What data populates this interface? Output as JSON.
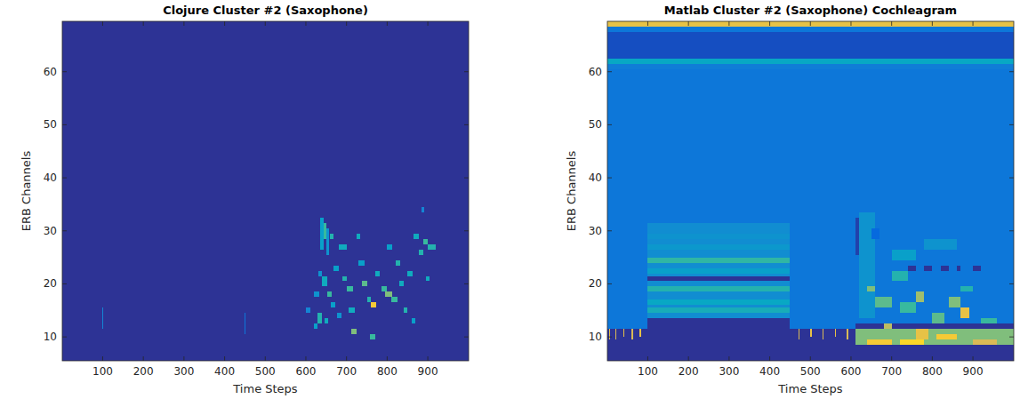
{
  "chart_data": [
    {
      "type": "heatmap",
      "title": "Clojure Cluster #2 (Saxophone)",
      "x_label": "Time Steps",
      "y_label": "ERB Channels",
      "xlim": [
        0.5,
        1000.5
      ],
      "ylim": [
        5.5,
        69.5
      ],
      "xticks": [
        100,
        200,
        300,
        400,
        500,
        600,
        700,
        800,
        900
      ],
      "yticks": [
        10,
        20,
        30,
        40,
        50,
        60
      ],
      "clim": [
        0,
        1
      ],
      "cells": [
        [
          0.5,
          1000.5,
          5.5,
          69.5,
          0.02
        ],
        [
          98,
          102,
          11.5,
          15.5,
          0.25
        ],
        [
          448,
          452,
          10.5,
          14.5,
          0.2
        ],
        [
          636,
          644,
          26.5,
          32.5,
          0.35
        ],
        [
          644,
          650,
          28.5,
          31.5,
          0.5
        ],
        [
          650,
          658,
          25.5,
          30.5,
          0.3
        ],
        [
          660,
          668,
          28.5,
          29.5,
          0.45
        ],
        [
          630,
          640,
          21.5,
          22.5,
          0.3
        ],
        [
          640,
          652,
          19.5,
          21.5,
          0.4
        ],
        [
          652,
          664,
          17.5,
          18.5,
          0.5
        ],
        [
          620,
          628,
          11.5,
          12.5,
          0.35
        ],
        [
          628,
          640,
          12.5,
          14.5,
          0.45
        ],
        [
          645,
          655,
          12.5,
          13.5,
          0.4
        ],
        [
          668,
          680,
          22.5,
          23.5,
          0.35
        ],
        [
          680,
          700,
          26.5,
          27.5,
          0.4
        ],
        [
          690,
          700,
          20.5,
          21.5,
          0.45
        ],
        [
          700,
          716,
          18.5,
          19.5,
          0.5
        ],
        [
          705,
          720,
          14.5,
          15.5,
          0.4
        ],
        [
          712,
          724,
          10.5,
          11.5,
          0.6
        ],
        [
          724,
          734,
          28.5,
          29.5,
          0.4
        ],
        [
          730,
          745,
          23.5,
          24.5,
          0.35
        ],
        [
          738,
          750,
          19.5,
          20.5,
          0.55
        ],
        [
          750,
          760,
          16.5,
          17.5,
          0.45
        ],
        [
          760,
          772,
          15.5,
          16.5,
          0.85
        ],
        [
          758,
          770,
          9.5,
          10.5,
          0.5
        ],
        [
          770,
          782,
          21.5,
          22.5,
          0.4
        ],
        [
          785,
          800,
          18.5,
          19.5,
          0.5
        ],
        [
          795,
          812,
          17.5,
          18.5,
          0.6
        ],
        [
          810,
          826,
          16.5,
          17.5,
          0.5
        ],
        [
          800,
          812,
          26.5,
          27.5,
          0.35
        ],
        [
          822,
          832,
          23.5,
          24.5,
          0.45
        ],
        [
          830,
          840,
          19.5,
          20.5,
          0.4
        ],
        [
          840,
          850,
          14.5,
          15.5,
          0.45
        ],
        [
          850,
          862,
          21.5,
          22.5,
          0.4
        ],
        [
          860,
          870,
          12.5,
          13.5,
          0.35
        ],
        [
          864,
          878,
          28.5,
          29.5,
          0.4
        ],
        [
          878,
          888,
          25.5,
          26.5,
          0.45
        ],
        [
          888,
          900,
          27.5,
          28.5,
          0.5
        ],
        [
          900,
          920,
          26.5,
          27.5,
          0.45
        ],
        [
          885,
          892,
          33.5,
          34.5,
          0.25
        ],
        [
          895,
          905,
          20.5,
          21.5,
          0.4
        ],
        [
          620,
          632,
          17.5,
          18.5,
          0.3
        ],
        [
          600,
          612,
          14.5,
          15.5,
          0.25
        ],
        [
          662,
          672,
          15.5,
          16.5,
          0.35
        ],
        [
          676,
          688,
          13.5,
          14.5,
          0.3
        ]
      ]
    },
    {
      "type": "heatmap",
      "title": "Matlab Cluster #2 (Saxophone) Cochleagram",
      "x_label": "Time Steps",
      "y_label": "ERB Channels",
      "xlim": [
        0.5,
        1000.5
      ],
      "ylim": [
        5.5,
        69.5
      ],
      "xticks": [
        100,
        200,
        300,
        400,
        500,
        600,
        700,
        800,
        900
      ],
      "yticks": [
        10,
        20,
        30,
        40,
        50,
        60
      ],
      "clim": [
        0,
        1
      ],
      "cells": [
        [
          0.5,
          1000.5,
          5.5,
          69.5,
          0.02
        ],
        [
          0.5,
          100,
          12.5,
          60.5,
          0.2
        ],
        [
          100,
          450,
          31.5,
          60.5,
          0.2
        ],
        [
          450,
          1000.5,
          12.5,
          60.5,
          0.2
        ],
        [
          100,
          450,
          13.5,
          31.5,
          0.28
        ],
        [
          100,
          450,
          14.5,
          15.5,
          0.42
        ],
        [
          100,
          450,
          16,
          17,
          0.38
        ],
        [
          100,
          450,
          18.5,
          19.5,
          0.45
        ],
        [
          100,
          450,
          20.5,
          21.5,
          0.02
        ],
        [
          100,
          450,
          22,
          23,
          0.35
        ],
        [
          100,
          450,
          24,
          25,
          0.48
        ],
        [
          100,
          450,
          26.5,
          27.5,
          0.32
        ],
        [
          100,
          450,
          28.5,
          29.5,
          0.3
        ],
        [
          0.5,
          100,
          11.5,
          12.5,
          0.2
        ],
        [
          450,
          610,
          11.5,
          12.5,
          0.2
        ],
        [
          5,
          8,
          9.5,
          11.5,
          0.8
        ],
        [
          20,
          23,
          9.5,
          11.5,
          0.75
        ],
        [
          40,
          43,
          10,
          11.5,
          0.8
        ],
        [
          60,
          63,
          9.5,
          11.5,
          0.75
        ],
        [
          80,
          83,
          10,
          11.5,
          0.8
        ],
        [
          470,
          473,
          9.5,
          11.5,
          0.75
        ],
        [
          500,
          503,
          10,
          11.5,
          0.8
        ],
        [
          530,
          533,
          9.5,
          11.5,
          0.75
        ],
        [
          560,
          563,
          10,
          11.5,
          0.8
        ],
        [
          590,
          593,
          9.5,
          11.5,
          0.75
        ],
        [
          610,
          1000.5,
          8.5,
          11.5,
          0.6
        ],
        [
          640,
          700,
          8.5,
          9.5,
          0.85
        ],
        [
          720,
          780,
          8.5,
          9.5,
          0.9
        ],
        [
          760,
          790,
          9.5,
          11.5,
          0.8
        ],
        [
          810,
          860,
          9.5,
          10.5,
          0.85
        ],
        [
          870,
          890,
          13.5,
          15.5,
          0.8
        ],
        [
          900,
          960,
          8.5,
          9.5,
          0.75
        ],
        [
          620,
          660,
          13.5,
          33.5,
          0.3
        ],
        [
          660,
          700,
          15.5,
          17.5,
          0.55
        ],
        [
          640,
          660,
          18.5,
          19.5,
          0.6
        ],
        [
          680,
          700,
          11.5,
          12.5,
          0.7
        ],
        [
          700,
          740,
          20.5,
          22.5,
          0.45
        ],
        [
          740,
          760,
          22.5,
          23.5,
          0.02
        ],
        [
          780,
          800,
          22.5,
          23.5,
          0.02
        ],
        [
          820,
          840,
          22.5,
          23.5,
          0.02
        ],
        [
          860,
          870,
          22.5,
          23.5,
          0.02
        ],
        [
          900,
          920,
          22.5,
          23.5,
          0.02
        ],
        [
          720,
          760,
          14.5,
          16.5,
          0.5
        ],
        [
          760,
          780,
          16.5,
          18.5,
          0.65
        ],
        [
          800,
          830,
          12.5,
          14.5,
          0.55
        ],
        [
          840,
          870,
          15.5,
          17.5,
          0.6
        ],
        [
          870,
          900,
          18.5,
          19.5,
          0.45
        ],
        [
          920,
          960,
          12.5,
          13.5,
          0.5
        ],
        [
          650,
          670,
          28.5,
          30.5,
          0.15
        ],
        [
          700,
          760,
          24.5,
          26.5,
          0.35
        ],
        [
          780,
          860,
          26.5,
          28.5,
          0.3
        ],
        [
          612,
          620,
          25.5,
          32.5,
          0.05
        ],
        [
          0.5,
          1000.5,
          60.5,
          61.5,
          0.22
        ],
        [
          0.5,
          1000.5,
          61.5,
          62.5,
          0.38
        ],
        [
          0.5,
          1000.5,
          62.5,
          67.5,
          0.08
        ],
        [
          0.5,
          1000.5,
          67.5,
          68.5,
          0.2
        ],
        [
          0.5,
          1000.5,
          68.5,
          69.5,
          0.8
        ]
      ]
    }
  ]
}
